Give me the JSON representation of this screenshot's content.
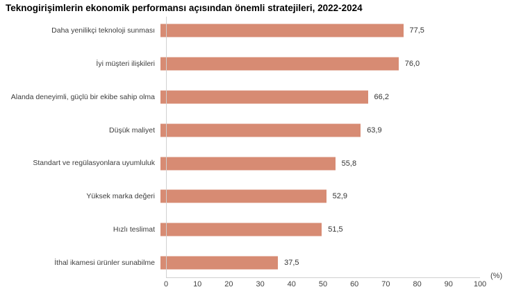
{
  "chart_data": {
    "type": "bar",
    "orientation": "horizontal",
    "title": "Teknogirişimlerin ekonomik performansı açısından önemli stratejileri, 2022-2024",
    "categories": [
      "Daha yenilikçi teknoloji sunması",
      "İyi müşteri ilişkileri",
      "Alanda deneyimli, güçlü bir ekibe sahip olma",
      "Düşük maliyet",
      "Standart ve regülasyonlara uyumluluk",
      "Yüksek marka değeri",
      "Hızlı teslimat",
      "İthal ikamesi ürünler sunabilme"
    ],
    "values": [
      77.5,
      76.0,
      66.2,
      63.9,
      55.8,
      52.9,
      51.5,
      37.5
    ],
    "value_labels": [
      "77,5",
      "76,0",
      "66,2",
      "63,9",
      "55,8",
      "52,9",
      "51,5",
      "37,5"
    ],
    "xlabel": "",
    "ylabel": "",
    "xlim": [
      0,
      100
    ],
    "x_ticks": [
      0,
      10,
      20,
      30,
      40,
      50,
      60,
      70,
      80,
      90,
      100
    ],
    "x_unit_label": "(%)",
    "grid": false,
    "legend": "none",
    "bar_color": "#d78b73",
    "axis_line_color": "#d0d0d0",
    "text_color": "#3c3c3c",
    "background_color": "#ffffff"
  }
}
